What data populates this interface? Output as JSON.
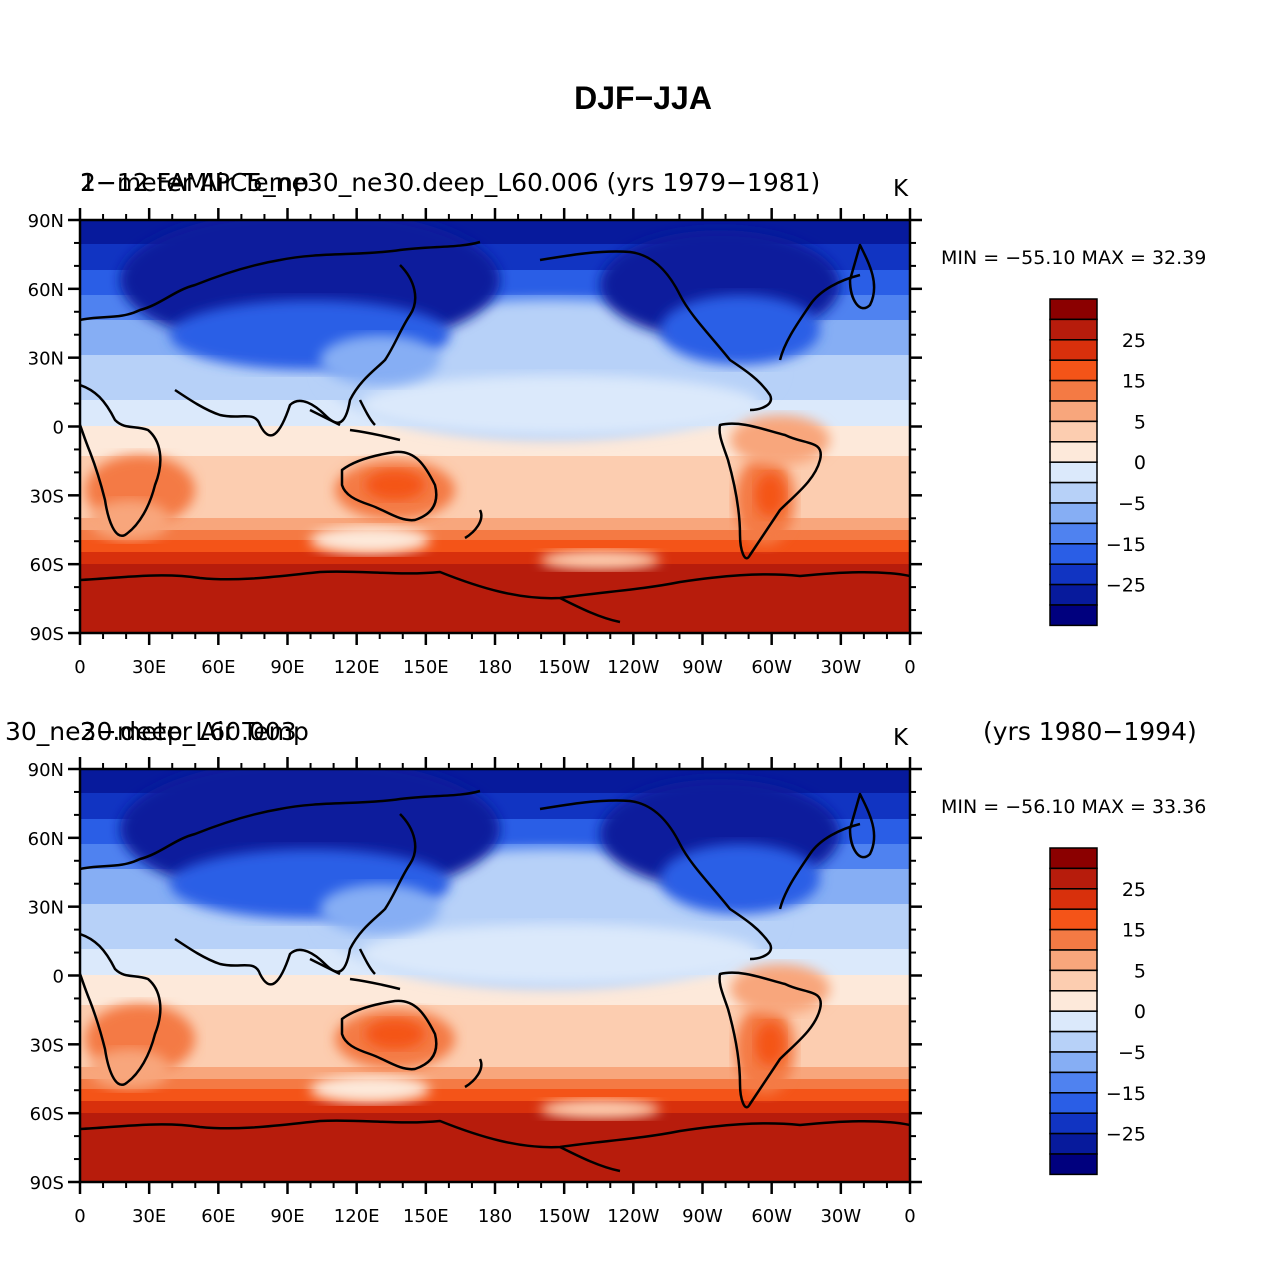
{
  "main_title": "DJF-JJA",
  "panels": [
    {
      "left_title": "2-meter Air Temp",
      "right_title": "1-12 FAMIPC5_ne30_ne30.deep_L60.006 (yrs 1979-1981)",
      "units": "K",
      "min_max": "MIN = -55.10  MAX =  32.39"
    },
    {
      "left_title": "2-meter Air Temp",
      "right_title": "30_ne30.deep_L60.003",
      "years": "(yrs 1980-1994)",
      "units": "K",
      "min_max": "MIN = -56.10  MAX =  33.36"
    }
  ],
  "lat_ticks": [
    "90N",
    "60N",
    "30N",
    "0",
    "30S",
    "60S",
    "90S"
  ],
  "lon_ticks": [
    "0",
    "30E",
    "60E",
    "90E",
    "120E",
    "150E",
    "180",
    "150W",
    "120W",
    "90W",
    "60W",
    "30W",
    "0"
  ],
  "colorbar": {
    "colors": [
      "#8b0000",
      "#b71c0c",
      "#d8300c",
      "#f45418",
      "#f47a44",
      "#f8a67c",
      "#fccdb0",
      "#fde9da",
      "#dbe9fb",
      "#b7d1f8",
      "#86aef4",
      "#4f82f0",
      "#2a5ee6",
      "#1134c2",
      "#071a9c",
      "#00007e"
    ],
    "labels": [
      "25",
      "15",
      "5",
      "0",
      "-5",
      "-15",
      "-25"
    ]
  },
  "legend_values": {
    "colors": [
      "red-orange = warmer in DJF",
      "blue = colder in DJF"
    ]
  }
}
